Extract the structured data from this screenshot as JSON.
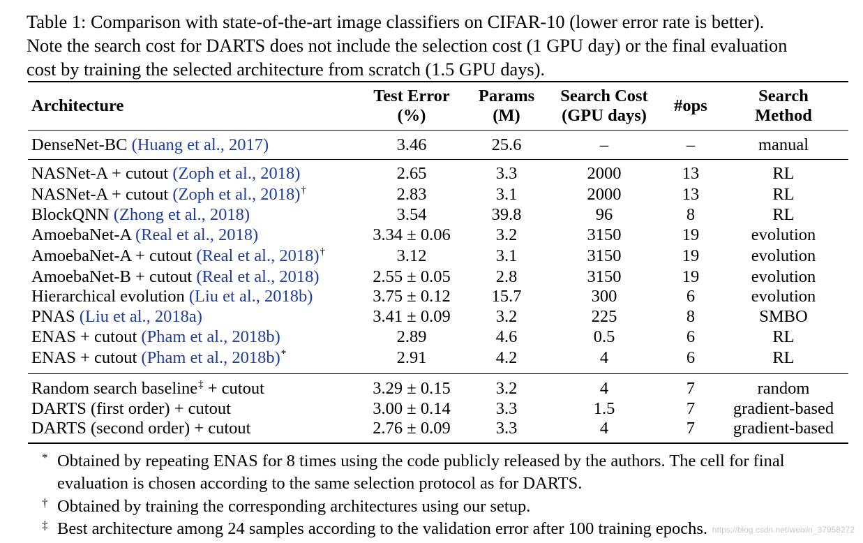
{
  "caption": {
    "line1": "Table 1: Comparison with state-of-the-art image classifiers on CIFAR-10 (lower error rate is better).",
    "line2": "Note the search cost for DARTS does not include the selection cost (1 GPU day) or the final evaluation",
    "line3": "cost by training the selected architecture from scratch (1.5 GPU days)."
  },
  "table": {
    "headers": {
      "architecture": "Architecture",
      "test_error_1": "Test Error",
      "test_error_2": "(%)",
      "params_1": "Params",
      "params_2": "(M)",
      "search_cost_1": "Search Cost",
      "search_cost_2": "(GPU days)",
      "ops": "#ops",
      "search_method_1": "Search",
      "search_method_2": "Method"
    },
    "rows": [
      {
        "name": "DenseNet-BC ",
        "cite": "(Huang et al., 2017)",
        "mark": "",
        "error": "3.46",
        "params": "25.6",
        "cost": "–",
        "ops": "–",
        "method": "manual"
      },
      {
        "name": "NASNet-A + cutout ",
        "cite": "(Zoph et al., 2018)",
        "mark": "",
        "error": "2.65",
        "params": "3.3",
        "cost": "2000",
        "ops": "13",
        "method": "RL"
      },
      {
        "name": "NASNet-A + cutout ",
        "cite": "(Zoph et al., 2018)",
        "mark": "†",
        "error": "2.83",
        "params": "3.1",
        "cost": "2000",
        "ops": "13",
        "method": "RL"
      },
      {
        "name": "BlockQNN ",
        "cite": "(Zhong et al., 2018)",
        "mark": "",
        "error": "3.54",
        "params": "39.8",
        "cost": "96",
        "ops": "8",
        "method": "RL"
      },
      {
        "name": "AmoebaNet-A ",
        "cite": "(Real et al., 2018)",
        "mark": "",
        "error": "3.34 ± 0.06",
        "params": "3.2",
        "cost": "3150",
        "ops": "19",
        "method": "evolution"
      },
      {
        "name": "AmoebaNet-A + cutout ",
        "cite": "(Real et al., 2018)",
        "mark": "†",
        "error": "3.12",
        "params": "3.1",
        "cost": "3150",
        "ops": "19",
        "method": "evolution"
      },
      {
        "name": "AmoebaNet-B + cutout ",
        "cite": "(Real et al., 2018)",
        "mark": "",
        "error": "2.55 ± 0.05",
        "params": "2.8",
        "cost": "3150",
        "ops": "19",
        "method": "evolution"
      },
      {
        "name": "Hierarchical evolution ",
        "cite": "(Liu et al., 2018b)",
        "mark": "",
        "error": "3.75 ± 0.12",
        "params": "15.7",
        "cost": "300",
        "ops": "6",
        "method": "evolution"
      },
      {
        "name": "PNAS ",
        "cite": "(Liu et al., 2018a)",
        "mark": "",
        "error": "3.41 ± 0.09",
        "params": "3.2",
        "cost": "225",
        "ops": "8",
        "method": "SMBO"
      },
      {
        "name": "ENAS + cutout ",
        "cite": "(Pham et al., 2018b)",
        "mark": "",
        "error": "2.89",
        "params": "4.6",
        "cost": "0.5",
        "ops": "6",
        "method": "RL"
      },
      {
        "name": "ENAS + cutout ",
        "cite": "(Pham et al., 2018b)",
        "mark": "*",
        "error": "2.91",
        "params": "4.2",
        "cost": "4",
        "ops": "6",
        "method": "RL"
      },
      {
        "name": "Random search baseline",
        "cite": "",
        "mark": "‡",
        "suffix": " + cutout",
        "error": "3.29 ± 0.15",
        "params": "3.2",
        "cost": "4",
        "ops": "7",
        "method": "random"
      },
      {
        "name": "DARTS (first order) + cutout",
        "cite": "",
        "mark": "",
        "error": "3.00 ± 0.14",
        "params": "3.3",
        "cost": "1.5",
        "ops": "7",
        "method": "gradient-based"
      },
      {
        "name": "DARTS (second order) + cutout",
        "cite": "",
        "mark": "",
        "error": "2.76 ± 0.09",
        "params": "3.3",
        "cost": "4",
        "ops": "7",
        "method": "gradient-based"
      }
    ]
  },
  "footnotes": [
    {
      "mark": "*",
      "line1": "Obtained by repeating ENAS for 8 times using the code publicly released by the authors. The cell for final",
      "line2": "evaluation is chosen according to the same selection protocol as for DARTS."
    },
    {
      "mark": "†",
      "line1": "Obtained by training the corresponding architectures using our setup.",
      "line2": ""
    },
    {
      "mark": "‡",
      "line1": "Best architecture among 24 samples according to the validation error after 100 training epochs.",
      "line2": ""
    }
  ],
  "watermark": "https://blog.csdn.net/weixin_37958272"
}
